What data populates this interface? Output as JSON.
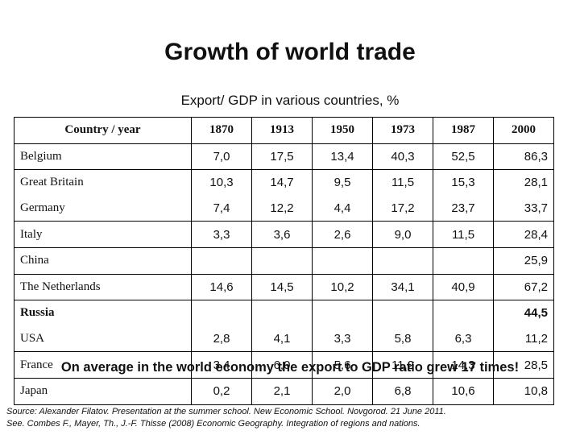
{
  "title": "Growth of world trade",
  "subtitle": "Export/ GDP in various countries, %",
  "table": {
    "headers": [
      "Country / year",
      "1870",
      "1913",
      "1950",
      "1973",
      "1987",
      "2000"
    ],
    "rows": [
      {
        "cells": [
          "Belgium",
          "7,0",
          "17,5",
          "13,4",
          "40,3",
          "52,5",
          "86,3"
        ],
        "top_border": true,
        "bold": false
      },
      {
        "cells": [
          "Great Britain",
          "10,3",
          "14,7",
          "9,5",
          "11,5",
          "15,3",
          "28,1"
        ],
        "top_border": true,
        "bold": false
      },
      {
        "cells": [
          "Germany",
          "7,4",
          "12,2",
          "4,4",
          "17,2",
          "23,7",
          "33,7"
        ],
        "top_border": false,
        "bold": false
      },
      {
        "cells": [
          "Italy",
          "3,3",
          "3,6",
          "2,6",
          "9,0",
          "11,5",
          "28,4"
        ],
        "top_border": true,
        "bold": false
      },
      {
        "cells": [
          "China",
          "",
          "",
          "",
          "",
          "",
          "25,9"
        ],
        "top_border": true,
        "bold": false
      },
      {
        "cells": [
          "The Netherlands",
          "14,6",
          "14,5",
          "10,2",
          "34,1",
          "40,9",
          "67,2"
        ],
        "top_border": true,
        "bold": false
      },
      {
        "cells": [
          "Russia",
          "",
          "",
          "",
          "",
          "",
          "44,5"
        ],
        "top_border": true,
        "bold": true
      },
      {
        "cells": [
          "USA",
          "2,8",
          "4,1",
          "3,3",
          "5,8",
          "6,3",
          "11,2"
        ],
        "top_border": false,
        "bold": false
      },
      {
        "cells": [
          "France",
          "3,4",
          "6,0",
          "5,6",
          "11,2",
          "14,3",
          "28,5"
        ],
        "top_border": true,
        "bold": false
      },
      {
        "cells": [
          "Japan",
          "0,2",
          "2,1",
          "2,0",
          "6,8",
          "10,6",
          "10,8"
        ],
        "top_border": true,
        "bold": false
      }
    ]
  },
  "overlay_text": "On average in the world economy the export to GDP ratio grew 17 times!",
  "source_line1": "Source: Alexander Filatov. Presentation at the summer school. New Economic School. Novgorod. 21 June 2011.",
  "source_line2": "See. Combes F., Mayer, Th., J.-F. Thisse (2008) Economic Geography. Integration of regions and nations."
}
